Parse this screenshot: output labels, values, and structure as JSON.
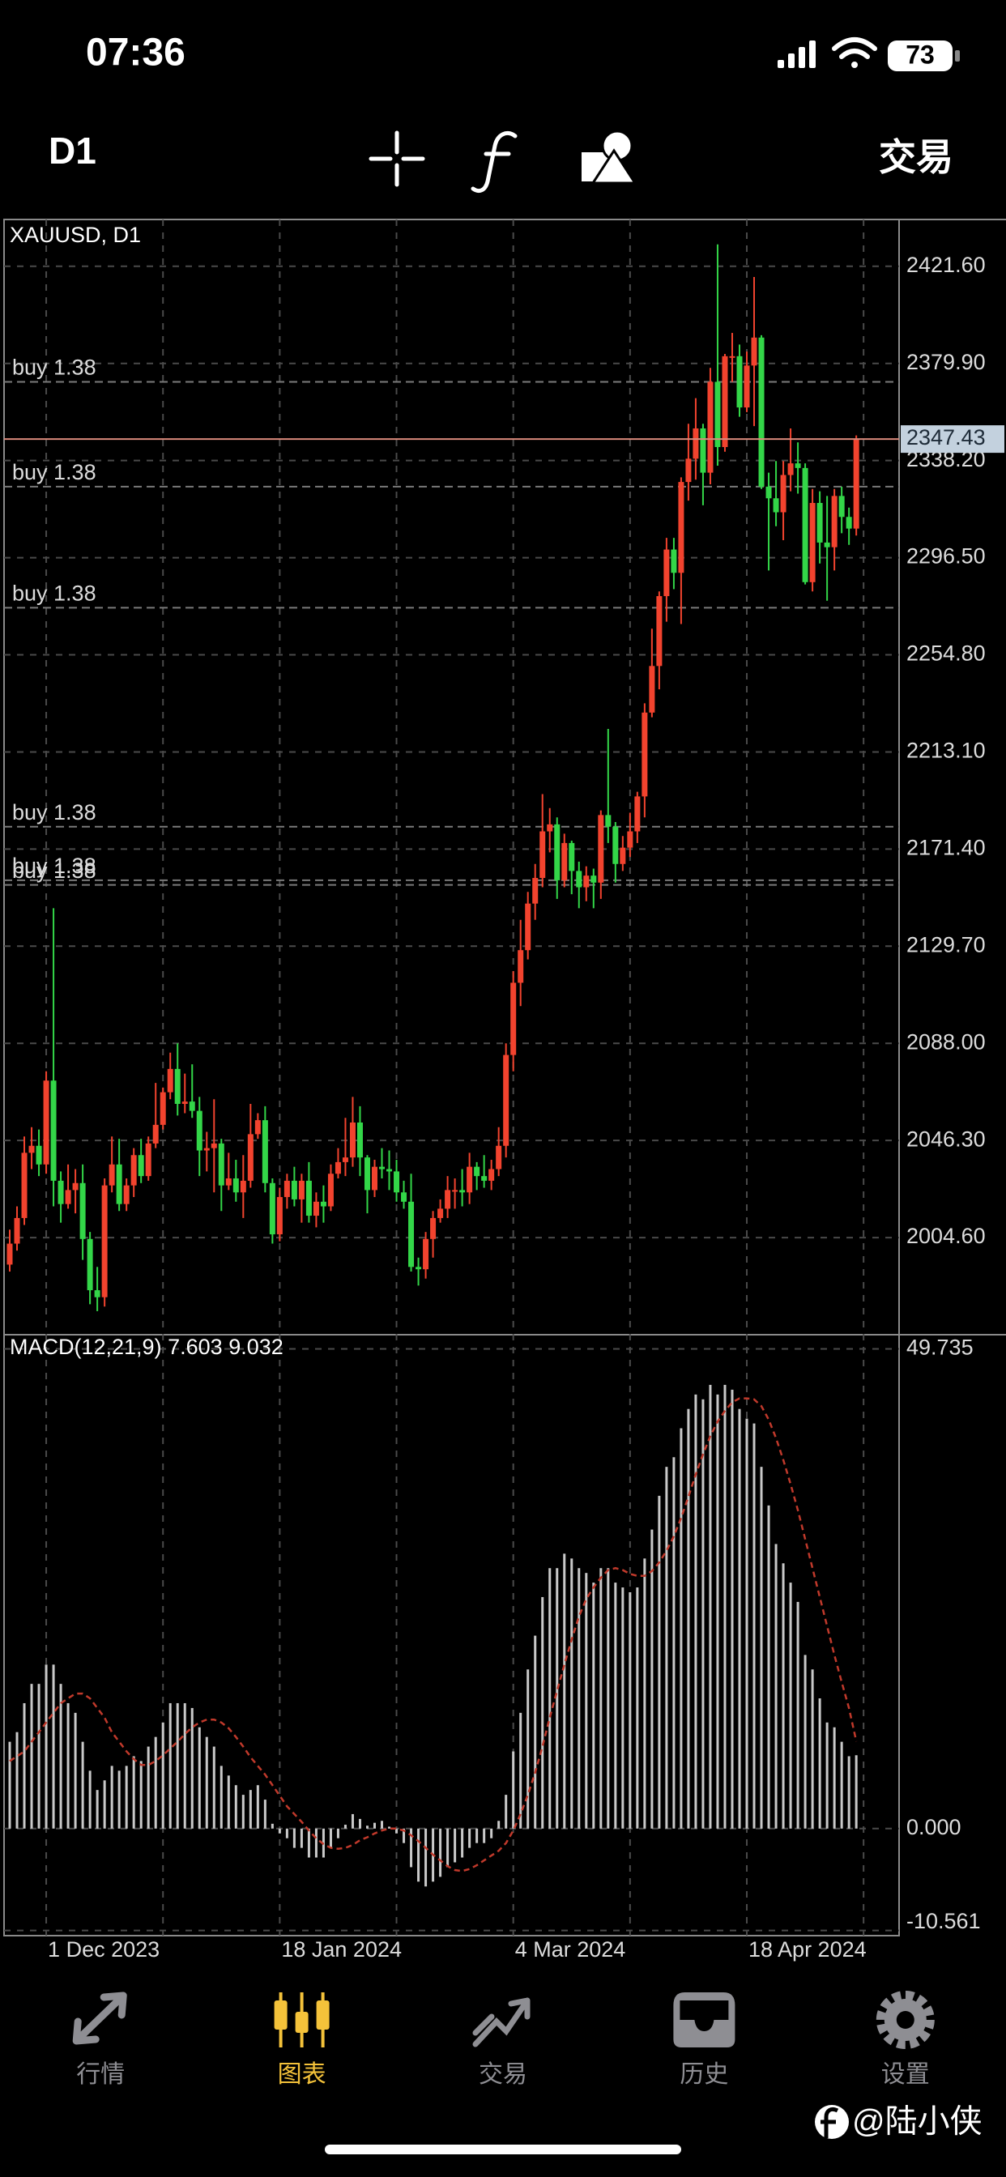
{
  "status_bar": {
    "time": "07:36",
    "battery": "73"
  },
  "toolbar": {
    "timeframe": "D1",
    "trade": "交易"
  },
  "chart_data": [
    {
      "type": "candlestick",
      "title": "XAUUSD, D1",
      "categories": [
        null,
        null,
        null,
        null,
        null,
        "1 Dec 2023",
        null,
        null,
        null,
        null,
        null,
        null,
        null,
        null,
        null,
        null,
        null,
        null,
        null,
        null,
        null,
        null,
        null,
        null,
        null,
        null,
        null,
        null,
        null,
        null,
        null,
        null,
        null,
        null,
        null,
        null,
        null,
        "18 Jan 2024",
        null,
        null,
        null,
        null,
        null,
        null,
        null,
        null,
        null,
        null,
        null,
        null,
        null,
        null,
        null,
        null,
        null,
        null,
        null,
        null,
        null,
        null,
        null,
        null,
        null,
        null,
        null,
        null,
        null,
        null,
        null,
        "4 Mar 2024",
        null,
        null,
        null,
        null,
        null,
        null,
        null,
        null,
        null,
        null,
        null,
        null,
        null,
        null,
        null,
        null,
        null,
        null,
        null,
        null,
        null,
        null,
        null,
        null,
        null,
        null,
        null,
        null,
        null,
        null,
        null,
        "18 Apr 2024",
        null,
        null,
        null,
        null,
        null,
        null,
        null,
        null,
        null,
        null,
        null,
        null,
        null,
        null,
        null
      ],
      "open": [
        1993,
        2002,
        2013,
        2041,
        2044,
        2036,
        2072,
        2029,
        2019,
        2025,
        2028,
        2004,
        1982,
        1979,
        2027,
        2036,
        2019,
        2027,
        2040,
        2031,
        2045,
        2053,
        2067,
        2077,
        2062,
        2063,
        2059,
        2042,
        2043,
        2045,
        2027,
        2030,
        2024,
        2029,
        2049,
        2055,
        2028,
        2006,
        2022,
        2029,
        2021,
        2029,
        2014,
        2020,
        2018,
        2032,
        2037,
        2039,
        2054,
        2039,
        2025,
        2035,
        2034,
        2033,
        2024,
        2020,
        1992,
        1991,
        2004,
        2013,
        2017,
        2025,
        2025,
        2024,
        2035,
        2031,
        2029,
        2034,
        2044,
        2083,
        2114,
        2128,
        2148,
        2159,
        2179,
        2182,
        2158,
        2174,
        2162,
        2155,
        2160,
        2157,
        2186,
        2181,
        2165,
        2172,
        2179,
        2194,
        2230,
        2250,
        2280,
        2300,
        2290,
        2329,
        2339,
        2352,
        2333,
        2372,
        2344,
        2383,
        2383,
        2361,
        2379,
        2391,
        2327,
        2322,
        2316,
        2332,
        2337,
        2335,
        2286,
        2320,
        2303,
        2301,
        2323,
        2314,
        2309
      ],
      "high": [
        2008,
        2018,
        2048,
        2052,
        2051,
        2076,
        2146,
        2033,
        2036,
        2034,
        2036,
        2007,
        1992,
        2030,
        2048,
        2047,
        2030,
        2043,
        2047,
        2048,
        2071,
        2069,
        2084,
        2088,
        2075,
        2079,
        2065,
        2050,
        2064,
        2047,
        2041,
        2038,
        2040,
        2062,
        2058,
        2061,
        2030,
        2026,
        2032,
        2035,
        2032,
        2037,
        2024,
        2027,
        2036,
        2043,
        2056,
        2065,
        2061,
        2040,
        2038,
        2043,
        2042,
        2038,
        2029,
        2032,
        1996,
        2007,
        2016,
        2021,
        2031,
        2030,
        2034,
        2041,
        2037,
        2040,
        2038,
        2052,
        2088,
        2119,
        2141,
        2153,
        2165,
        2195,
        2189,
        2185,
        2178,
        2175,
        2166,
        2164,
        2163,
        2188,
        2223,
        2183,
        2177,
        2187,
        2196,
        2234,
        2266,
        2282,
        2305,
        2305,
        2331,
        2354,
        2365,
        2354,
        2378,
        2431,
        2384,
        2393,
        2388,
        2385,
        2417,
        2392,
        2333,
        2338,
        2338,
        2352,
        2346,
        2337,
        2326,
        2325,
        2323,
        2326,
        2327,
        2318,
        2349
      ],
      "low": [
        1990,
        1999,
        2010,
        2034,
        2031,
        2032,
        2018,
        2011,
        2017,
        2015,
        1995,
        1976,
        1973,
        1975,
        2024,
        2016,
        2016,
        2022,
        2028,
        2029,
        2043,
        2051,
        2064,
        2057,
        2058,
        2056,
        2031,
        2033,
        2024,
        2016,
        2025,
        2020,
        2013,
        2026,
        2047,
        2024,
        2002,
        2003,
        2017,
        2018,
        2011,
        2011,
        2009,
        2011,
        2016,
        2030,
        2031,
        2035,
        2031,
        2015,
        2022,
        2030,
        2025,
        2020,
        2017,
        1990,
        1984,
        1987,
        1996,
        2011,
        2013,
        2017,
        2018,
        2019,
        2025,
        2026,
        2025,
        2031,
        2039,
        2076,
        2104,
        2124,
        2141,
        2155,
        2170,
        2150,
        2155,
        2152,
        2146,
        2149,
        2146,
        2150,
        2174,
        2157,
        2162,
        2168,
        2174,
        2185,
        2228,
        2240,
        2269,
        2283,
        2268,
        2321,
        2330,
        2319,
        2328,
        2336,
        2342,
        2372,
        2357,
        2359,
        2353,
        2326,
        2291,
        2310,
        2304,
        2325,
        2324,
        2285,
        2282,
        2294,
        2278,
        2291,
        2307,
        2302,
        2306
      ],
      "close": [
        2002,
        2013,
        2041,
        2044,
        2036,
        2072,
        2029,
        2019,
        2025,
        2028,
        2004,
        1982,
        1979,
        2027,
        2036,
        2019,
        2027,
        2040,
        2031,
        2045,
        2053,
        2067,
        2077,
        2062,
        2063,
        2059,
        2042,
        2043,
        2045,
        2027,
        2030,
        2024,
        2029,
        2049,
        2055,
        2028,
        2006,
        2022,
        2029,
        2021,
        2029,
        2014,
        2020,
        2018,
        2032,
        2037,
        2039,
        2054,
        2039,
        2025,
        2035,
        2034,
        2033,
        2024,
        2020,
        1992,
        1991,
        2004,
        2013,
        2017,
        2025,
        2025,
        2024,
        2035,
        2031,
        2029,
        2034,
        2044,
        2083,
        2114,
        2128,
        2148,
        2159,
        2179,
        2182,
        2158,
        2174,
        2162,
        2155,
        2160,
        2157,
        2186,
        2181,
        2165,
        2172,
        2179,
        2194,
        2230,
        2250,
        2280,
        2300,
        2290,
        2329,
        2339,
        2352,
        2333,
        2372,
        2344,
        2383,
        2383,
        2361,
        2379,
        2391,
        2327,
        2322,
        2316,
        2332,
        2337,
        2335,
        2286,
        2320,
        2303,
        2301,
        2323,
        2314,
        2309,
        2347.43
      ],
      "up_color": "#f2432e",
      "down_color": "#33d648",
      "current_price_color": "#d98a7c",
      "ylim": [
        1962.9,
        2441.7
      ],
      "yticks": [
        {
          "value": 2421.6,
          "label": "2421.60"
        },
        {
          "value": 2379.9,
          "label": "2379.90"
        },
        {
          "value": 2338.2,
          "label": "2338.20"
        },
        {
          "value": 2296.5,
          "label": "2296.50"
        },
        {
          "value": 2254.8,
          "label": "2254.80"
        },
        {
          "value": 2213.1,
          "label": "2213.10"
        },
        {
          "value": 2171.4,
          "label": "2171.40"
        },
        {
          "value": 2129.7,
          "label": "2129.70"
        },
        {
          "value": 2088,
          "label": "2088.00"
        },
        {
          "value": 2046.3,
          "label": "2046.30"
        },
        {
          "value": 2004.6,
          "label": "2004.60"
        }
      ],
      "grid": true,
      "orders": [
        {
          "label": "buy 1.38",
          "price": 2372
        },
        {
          "label": "buy 1.38",
          "price": 2327
        },
        {
          "label": "buy 1.38",
          "price": 2275
        },
        {
          "label": "buy 1.38",
          "price": 2181
        },
        {
          "label": "buy 1.38",
          "price": 2158
        },
        {
          "label": "buy 1.38",
          "price": 2156
        }
      ]
    },
    {
      "type": "macd",
      "title": "MACD(12,21,9)",
      "values": [
        9,
        10,
        13,
        15,
        15,
        17,
        17,
        15,
        13,
        12,
        9,
        6,
        4,
        5,
        6.5,
        6,
        6.5,
        7.5,
        7,
        8.5,
        9.5,
        11,
        13,
        13,
        13,
        12.5,
        10.5,
        9.5,
        8.5,
        6.5,
        5.5,
        4.5,
        3.5,
        4,
        4.5,
        3,
        0.5,
        -0.5,
        -1,
        -2,
        -2,
        -3,
        -3,
        -3,
        -2,
        -1,
        0.4,
        1.5,
        1,
        0.3,
        0.6,
        0.8,
        0.2,
        -0.5,
        -1.5,
        -4,
        -5.5,
        -6,
        -5.5,
        -5,
        -4,
        -3.5,
        -3,
        -2,
        -1.5,
        -1.5,
        -1,
        0.8,
        3.5,
        8,
        12,
        16.5,
        20,
        24,
        27,
        27,
        28.5,
        28,
        27,
        26.5,
        25.5,
        27,
        27,
        25.5,
        25,
        24.5,
        25,
        28,
        31,
        34.5,
        37.5,
        38.5,
        41.5,
        43.5,
        45,
        44.5,
        46,
        45,
        46,
        45.5,
        43.5,
        42.5,
        42,
        37.5,
        33.5,
        29.5,
        27.5,
        25.5,
        23.5,
        18,
        16.5,
        13.5,
        11,
        10.5,
        9,
        7.5,
        7.603
      ],
      "signal": [
        7,
        7.5,
        8,
        9,
        10,
        11,
        12,
        13,
        13.5,
        14,
        14,
        13.5,
        12.5,
        11.5,
        10,
        9,
        8,
        7.2,
        6.6,
        6.6,
        7,
        7.6,
        8.3,
        9,
        9.8,
        10.5,
        11,
        11.3,
        11.3,
        11,
        10.4,
        9.5,
        8.5,
        7.4,
        6.5,
        5.6,
        4.5,
        3.4,
        2.3,
        1.5,
        0.7,
        -0.2,
        -1,
        -1.6,
        -2,
        -2.1,
        -2,
        -1.7,
        -1.2,
        -0.9,
        -0.5,
        -0.2,
        0,
        0,
        -0.2,
        -0.7,
        -1.3,
        -2,
        -2.7,
        -3.3,
        -3.9,
        -4.3,
        -4.4,
        -4.2,
        -3.8,
        -3.3,
        -2.8,
        -2.3,
        -1.5,
        -0.2,
        1.5,
        3.5,
        5.8,
        8.5,
        11.5,
        14.3,
        17,
        19.6,
        22,
        23.8,
        25,
        26,
        26.8,
        27,
        26.8,
        26.4,
        26.2,
        26.2,
        26.7,
        27.6,
        28.8,
        30.3,
        32.2,
        34.4,
        36.7,
        38.8,
        40.7,
        42.2,
        43.3,
        44.2,
        44.6,
        44.6,
        44.5,
        43.8,
        42.4,
        40.5,
        38.2,
        35.7,
        33,
        30,
        27,
        24,
        21,
        18,
        15.2,
        12.5,
        9.032
      ],
      "color": "#c9c9c9",
      "signal_color": "#c0392b",
      "ylim": [
        -11.1,
        51.2
      ],
      "yticks": [
        49.735,
        {
          "value": 0,
          "label": "0.000"
        },
        -10.561
      ],
      "grid": true
    }
  ],
  "tabs": [
    {
      "label": "行情",
      "active": false
    },
    {
      "label": "图表",
      "active": true
    },
    {
      "label": "交易",
      "active": false
    },
    {
      "label": "历史",
      "active": false
    },
    {
      "label": "设置",
      "active": false
    }
  ],
  "watermark": "@陆小侠"
}
